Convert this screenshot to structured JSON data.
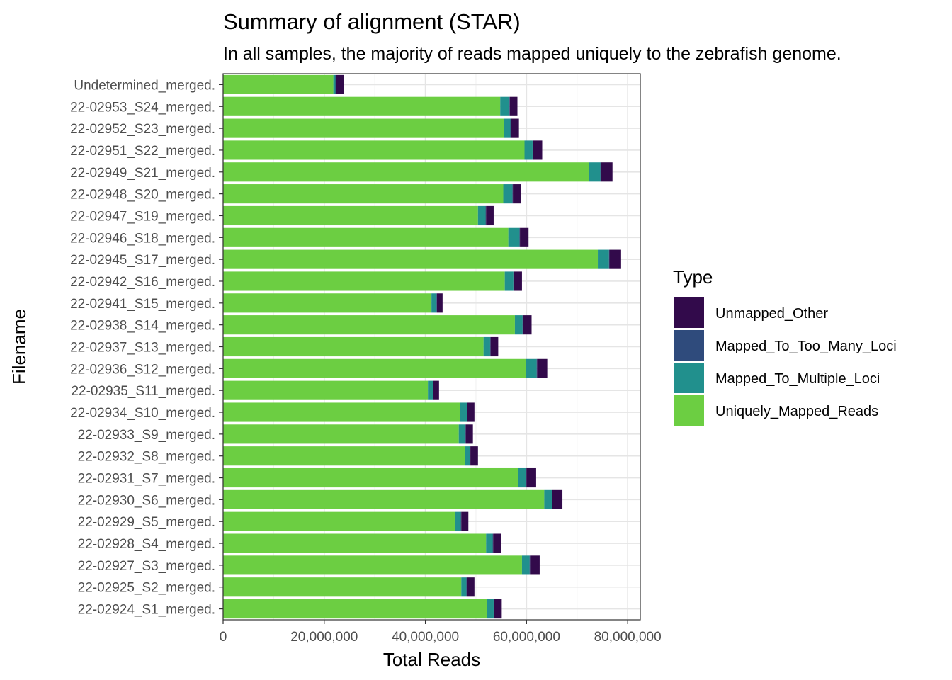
{
  "chart_data": {
    "type": "bar",
    "orientation": "horizontal",
    "stacked": true,
    "title": "Summary of alignment (STAR)",
    "subtitle": "In all samples, the majority of reads mapped uniquely to the zebrafish genome.",
    "xlabel": "Total Reads",
    "ylabel": "Filename",
    "xlim": [
      0,
      82500000
    ],
    "x_ticks": [
      0,
      20000000,
      40000000,
      60000000,
      80000000
    ],
    "x_tick_labels": [
      "0",
      "20,000,000",
      "40,000,000",
      "60,000,000",
      "80,000,000"
    ],
    "grid": true,
    "legend_title": "Type",
    "legend_position": "right",
    "categories": [
      "22-02924_S1_merged.",
      "22-02925_S2_merged.",
      "22-02927_S3_merged.",
      "22-02928_S4_merged.",
      "22-02929_S5_merged.",
      "22-02930_S6_merged.",
      "22-02931_S7_merged.",
      "22-02932_S8_merged.",
      "22-02933_S9_merged.",
      "22-02934_S10_merged.",
      "22-02935_S11_merged.",
      "22-02936_S12_merged.",
      "22-02937_S13_merged.",
      "22-02938_S14_merged.",
      "22-02941_S15_merged.",
      "22-02942_S16_merged.",
      "22-02945_S17_merged.",
      "22-02946_S18_merged.",
      "22-02947_S19_merged.",
      "22-02948_S20_merged.",
      "22-02949_S21_merged.",
      "22-02951_S22_merged.",
      "22-02952_S23_merged.",
      "22-02953_S24_merged.",
      "Undetermined_merged."
    ],
    "series": [
      {
        "name": "Uniquely_Mapped_Reads",
        "color": "#6CCE42",
        "values": [
          52200000,
          47100000,
          59100000,
          52000000,
          45800000,
          63500000,
          58400000,
          47900000,
          46600000,
          46900000,
          40500000,
          59900000,
          51500000,
          57700000,
          41200000,
          55700000,
          74100000,
          56400000,
          50400000,
          55400000,
          72300000,
          59600000,
          55500000,
          54800000,
          21800000
        ]
      },
      {
        "name": "Mapped_To_Multiple_Loci",
        "color": "#21908D",
        "values": [
          1300000,
          1000000,
          1500000,
          1300000,
          1200000,
          1500000,
          1500000,
          900000,
          1300000,
          1300000,
          1000000,
          2100000,
          1300000,
          1500000,
          1000000,
          1700000,
          2200000,
          2200000,
          1500000,
          1800000,
          2300000,
          1600000,
          1300000,
          1800000,
          400000
        ]
      },
      {
        "name": "Mapped_To_Too_Many_Loci",
        "color": "#2F4B7C",
        "values": [
          100000,
          100000,
          100000,
          100000,
          100000,
          100000,
          100000,
          100000,
          100000,
          100000,
          100000,
          100000,
          100000,
          100000,
          100000,
          100000,
          100000,
          100000,
          100000,
          100000,
          100000,
          100000,
          100000,
          100000,
          100000
        ]
      },
      {
        "name": "Unmapped_Other",
        "color": "#320A4B",
        "values": [
          1500000,
          1500000,
          1900000,
          1600000,
          1400000,
          2000000,
          1900000,
          1500000,
          1400000,
          1400000,
          1100000,
          2000000,
          1500000,
          1700000,
          1100000,
          1600000,
          2300000,
          1700000,
          1500000,
          1600000,
          2300000,
          1800000,
          1600000,
          1500000,
          1600000
        ]
      }
    ],
    "legend_order": [
      "Unmapped_Other",
      "Mapped_To_Too_Many_Loci",
      "Mapped_To_Multiple_Loci",
      "Uniquely_Mapped_Reads"
    ]
  }
}
